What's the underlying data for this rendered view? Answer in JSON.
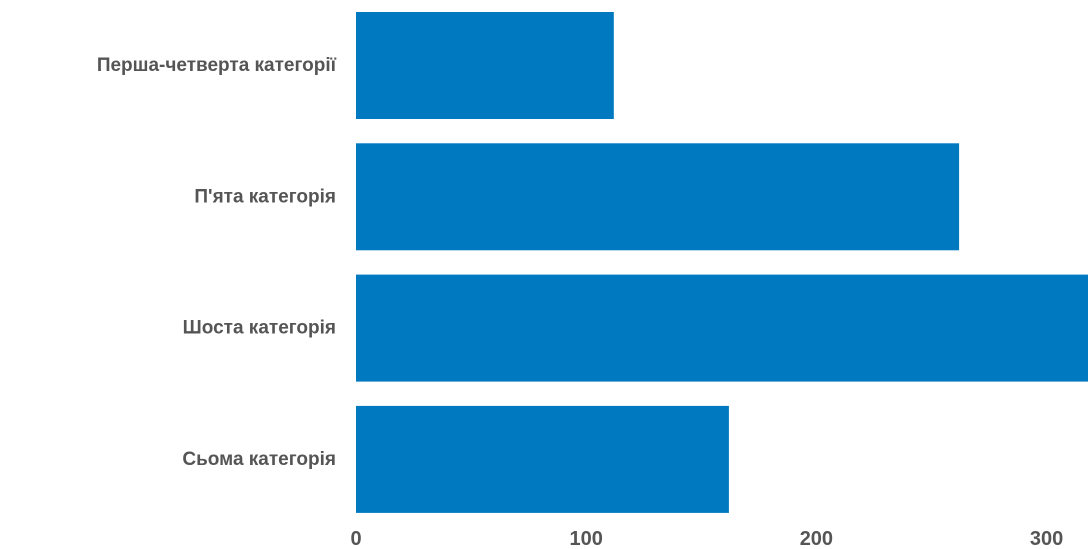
{
  "chart_data": {
    "type": "bar",
    "orientation": "horizontal",
    "categories": [
      "Перша-четверта категорії",
      "П'ята категорія",
      "Шоста категорія",
      "Сьома категорія"
    ],
    "values": [
      112,
      262,
      318,
      162
    ],
    "xlim": [
      0,
      318
    ],
    "xticks": [
      0,
      100,
      200,
      300
    ],
    "xtick_labels": [
      "0",
      "100",
      "200",
      "300"
    ],
    "grid": false,
    "legend": "none",
    "bar_color": "#0079c1",
    "label_color": "#555555"
  }
}
